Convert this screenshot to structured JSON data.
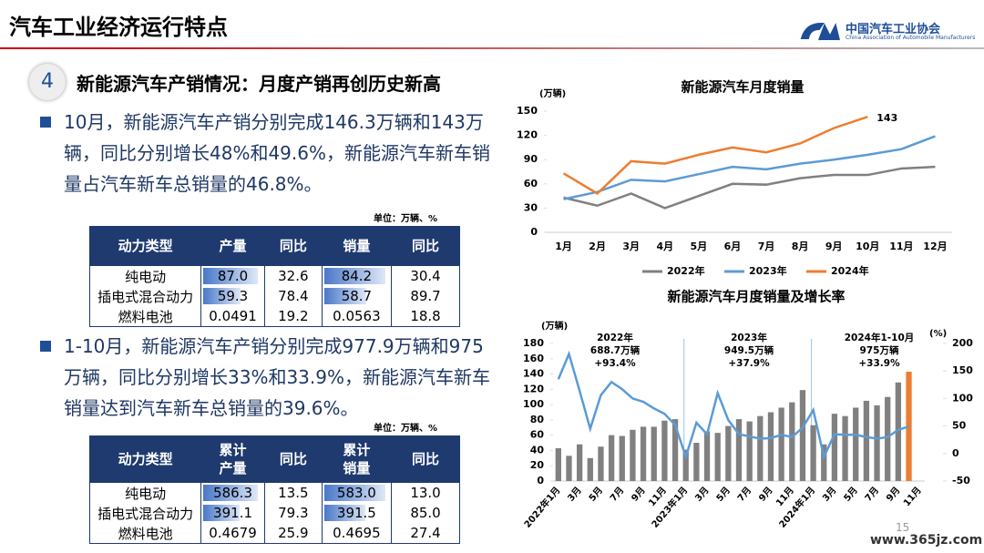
{
  "header": {
    "title": "汽车工业经济运行特点",
    "org_name": "中国汽车工业协会",
    "org_name_en": "China Association of Automobile Manufacturers"
  },
  "section": {
    "number": "4",
    "heading": "新能源汽车产销情况：月度产销再创历史新高"
  },
  "bullets": [
    "10月，新能源汽车产销分别完成146.3万辆和143万辆，同比分别增长48%和49.6%，新能源汽车新车销量占汽车新车总销量的46.8%。",
    "1-10月，新能源汽车产销分别完成977.9万辆和975万辆，同比分别增长33%和33.9%，新能源汽车新车销量达到汽车新车总销量的39.6%。"
  ],
  "table1": {
    "unit": "单位：万辆、%",
    "data_bar_columns": [
      1,
      3
    ],
    "headers": [
      "动力类型",
      "产量",
      "同比",
      "销量",
      "同比"
    ],
    "rows": [
      [
        "纯电动",
        "87.0",
        "32.6",
        "84.2",
        "30.4"
      ],
      [
        "插电式混合动力",
        "59.3",
        "78.4",
        "58.7",
        "89.7"
      ],
      [
        "燃料电池",
        "0.0491",
        "19.2",
        "0.0563",
        "18.8"
      ]
    ]
  },
  "table2": {
    "unit": "单位：万辆、%",
    "data_bar_columns": [
      1,
      3
    ],
    "headers": [
      "动力类型",
      "累计\n产量",
      "同比",
      "累计\n销量",
      "同比"
    ],
    "rows": [
      [
        "纯电动",
        "586.3",
        "13.5",
        "583.0",
        "13.0"
      ],
      [
        "插电式混合动力",
        "391.1",
        "79.3",
        "391.5",
        "85.0"
      ],
      [
        "燃料电池",
        "0.4679",
        "25.9",
        "0.4695",
        "27.4"
      ]
    ]
  },
  "chart_data": [
    {
      "type": "line",
      "title": "新能源汽车月度销量",
      "y_unit": "(万辆)",
      "categories": [
        "1月",
        "2月",
        "3月",
        "4月",
        "5月",
        "6月",
        "7月",
        "8月",
        "9月",
        "10月",
        "11月",
        "12月"
      ],
      "series": [
        {
          "name": "2022年",
          "color": "#808080",
          "values": [
            43,
            33,
            48,
            30,
            45,
            60,
            59,
            67,
            71,
            71,
            79,
            81
          ]
        },
        {
          "name": "2023年",
          "color": "#5b9bd5",
          "values": [
            41,
            50,
            65,
            63,
            72,
            81,
            78,
            85,
            90,
            96,
            103,
            119
          ]
        },
        {
          "name": "2024年",
          "color": "#ed7d31",
          "values": [
            73,
            48,
            88,
            85,
            96,
            105,
            99,
            110,
            129,
            143,
            null,
            null
          ]
        }
      ],
      "annotations": [
        "143"
      ],
      "ylim": [
        0,
        150
      ],
      "yticks": [
        0,
        30,
        60,
        90,
        120,
        150
      ],
      "grid": false,
      "legend": "bottom"
    },
    {
      "type": "bar_line",
      "title": "新能源汽车月度销量及增长率",
      "y_unit": "(万辆)",
      "y2_unit": "(%)",
      "categories": [
        "2022年1月",
        null,
        "3月",
        null,
        "5月",
        null,
        "7月",
        null,
        "9月",
        null,
        "11月",
        null,
        "2023年1月",
        null,
        "3月",
        null,
        "5月",
        null,
        "7月",
        null,
        "9月",
        null,
        "11月",
        null,
        "2024年1月",
        null,
        "3月",
        null,
        "5月",
        null,
        "7月",
        null,
        "9月",
        null,
        "11月"
      ],
      "series": [
        {
          "color": "#808080",
          "values": [
            43,
            33,
            48,
            30,
            45,
            60,
            59,
            67,
            71,
            71,
            79,
            81,
            41,
            50,
            65,
            63,
            72,
            81,
            78,
            85,
            90,
            96,
            103,
            119,
            73,
            48,
            88,
            85,
            96,
            105,
            99,
            110,
            129,
            143,
            null
          ],
          "colors": [
            "#808080",
            "#808080",
            "#808080",
            "#808080",
            "#808080",
            "#808080",
            "#808080",
            "#808080",
            "#808080",
            "#808080",
            "#808080",
            "#808080",
            "#808080",
            "#808080",
            "#808080",
            "#808080",
            "#808080",
            "#808080",
            "#808080",
            "#808080",
            "#808080",
            "#808080",
            "#808080",
            "#808080",
            "#808080",
            "#808080",
            "#808080",
            "#808080",
            "#808080",
            "#808080",
            "#808080",
            "#808080",
            "#808080",
            "#ed7d31",
            "#808080"
          ]
        },
        {
          "color": "#5b9bd5",
          "axis": "y2",
          "values": [
            135,
            181,
            114,
            45,
            106,
            130,
            117,
            100,
            94,
            82,
            72,
            52,
            -6,
            56,
            35,
            110,
            61,
            35,
            31,
            27,
            28,
            34,
            30,
            47,
            79,
            -6,
            35,
            34,
            34,
            30,
            27,
            30,
            43,
            49,
            null
          ]
        }
      ],
      "annotations": [
        [
          "2022年",
          "688.7万辆",
          "+93.4%"
        ],
        [
          "2023年",
          "949.5万辆",
          "+37.9%"
        ],
        [
          "2024年1-10月",
          "975万辆",
          "+33.9%"
        ]
      ],
      "ylim": [
        0,
        180
      ],
      "yticks": [
        0,
        20,
        40,
        60,
        80,
        100,
        120,
        140,
        160,
        180
      ],
      "y2lim": [
        -50,
        200
      ],
      "y2ticks": [
        -50,
        0,
        50,
        100,
        150,
        200
      ],
      "grid": false
    }
  ],
  "page_number": "15",
  "watermark": "www.365jz.com"
}
